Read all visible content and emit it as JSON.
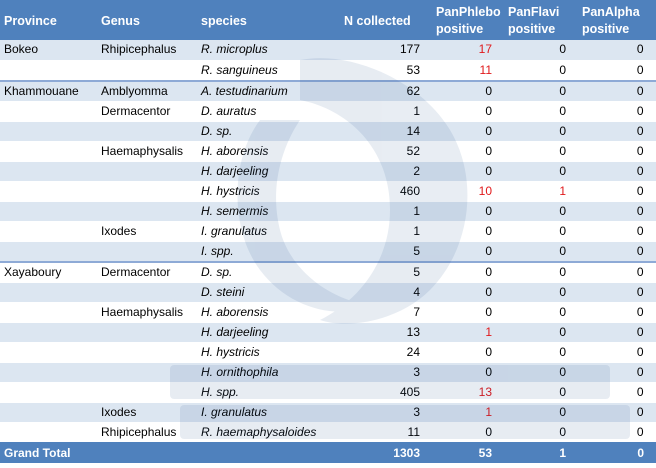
{
  "headers": {
    "province": "Province",
    "genus": "Genus",
    "species": "species",
    "n_collected": "N collected",
    "panphlebo": [
      "PanPhlebo",
      "positive"
    ],
    "panflavi": [
      "PanFlavi",
      "positive"
    ],
    "panalpha": [
      "PanAlpha",
      "positive"
    ]
  },
  "rows": [
    {
      "province": "Bokeo",
      "genus": "Rhipicephalus",
      "species": "R. microplus",
      "n": "177",
      "phlebo": "17",
      "flavi": "0",
      "alpha": "0",
      "shade": true,
      "grpstart": false
    },
    {
      "province": "",
      "genus": "",
      "species": "R. sanguineus",
      "n": "53",
      "phlebo": "11",
      "flavi": "0",
      "alpha": "0",
      "shade": false,
      "grpstart": false
    },
    {
      "province": "Khammouane",
      "genus": "Amblyomma",
      "species": "A. testudinarium",
      "n": "62",
      "phlebo": "0",
      "flavi": "0",
      "alpha": "0",
      "shade": true,
      "grpstart": true
    },
    {
      "province": "",
      "genus": "Dermacentor",
      "species": "D. auratus",
      "n": "1",
      "phlebo": "0",
      "flavi": "0",
      "alpha": "0",
      "shade": false,
      "grpstart": false
    },
    {
      "province": "",
      "genus": "",
      "species": "D. sp.",
      "n": "14",
      "phlebo": "0",
      "flavi": "0",
      "alpha": "0",
      "shade": true,
      "grpstart": false
    },
    {
      "province": "",
      "genus": "Haemaphysalis",
      "species": "H. aborensis",
      "n": "52",
      "phlebo": "0",
      "flavi": "0",
      "alpha": "0",
      "shade": false,
      "grpstart": false
    },
    {
      "province": "",
      "genus": "",
      "species": "H. darjeeling",
      "n": "2",
      "phlebo": "0",
      "flavi": "0",
      "alpha": "0",
      "shade": true,
      "grpstart": false
    },
    {
      "province": "",
      "genus": "",
      "species": "H. hystricis",
      "n": "460",
      "phlebo": "10",
      "flavi": "1",
      "alpha": "0",
      "shade": false,
      "grpstart": false
    },
    {
      "province": "",
      "genus": "",
      "species": "H. semermis",
      "n": "1",
      "phlebo": "0",
      "flavi": "0",
      "alpha": "0",
      "shade": true,
      "grpstart": false
    },
    {
      "province": "",
      "genus": "Ixodes",
      "species": "I. granulatus",
      "n": "1",
      "phlebo": "0",
      "flavi": "0",
      "alpha": "0",
      "shade": false,
      "grpstart": false
    },
    {
      "province": "",
      "genus": "",
      "species": "I. spp.",
      "n": "5",
      "phlebo": "0",
      "flavi": "0",
      "alpha": "0",
      "shade": true,
      "grpstart": false
    },
    {
      "province": "Xayaboury",
      "genus": "Dermacentor",
      "species": "D. sp.",
      "n": "5",
      "phlebo": "0",
      "flavi": "0",
      "alpha": "0",
      "shade": false,
      "grpstart": true
    },
    {
      "province": "",
      "genus": "",
      "species": "D. steini",
      "n": "4",
      "phlebo": "0",
      "flavi": "0",
      "alpha": "0",
      "shade": true,
      "grpstart": false
    },
    {
      "province": "",
      "genus": "Haemaphysalis",
      "species": "H. aborensis",
      "n": "7",
      "phlebo": "0",
      "flavi": "0",
      "alpha": "0",
      "shade": false,
      "grpstart": false
    },
    {
      "province": "",
      "genus": "",
      "species": "H. darjeeling",
      "n": "13",
      "phlebo": "1",
      "flavi": "0",
      "alpha": "0",
      "shade": true,
      "grpstart": false
    },
    {
      "province": "",
      "genus": "",
      "species": "H. hystricis",
      "n": "24",
      "phlebo": "0",
      "flavi": "0",
      "alpha": "0",
      "shade": false,
      "grpstart": false
    },
    {
      "province": "",
      "genus": "",
      "species": "H. ornithophila",
      "n": "3",
      "phlebo": "0",
      "flavi": "0",
      "alpha": "0",
      "shade": true,
      "grpstart": false
    },
    {
      "province": "",
      "genus": "",
      "species": "H. spp.",
      "n": "405",
      "phlebo": "13",
      "flavi": "0",
      "alpha": "0",
      "shade": false,
      "grpstart": false
    },
    {
      "province": "",
      "genus": "Ixodes",
      "species": "I. granulatus",
      "n": "3",
      "phlebo": "1",
      "flavi": "0",
      "alpha": "0",
      "shade": true,
      "grpstart": false
    },
    {
      "province": "",
      "genus": "Rhipicephalus",
      "species": "R. haemaphysaloides",
      "n": "11",
      "phlebo": "0",
      "flavi": "0",
      "alpha": "0",
      "shade": false,
      "grpstart": false
    }
  ],
  "grand_total": {
    "label": "Grand Total",
    "n": "1303",
    "phlebo": "53",
    "flavi": "1",
    "alpha": "0"
  },
  "colors": {
    "header": "#4f81bd",
    "band": "#dce6f1",
    "positive": "#e0191b"
  }
}
